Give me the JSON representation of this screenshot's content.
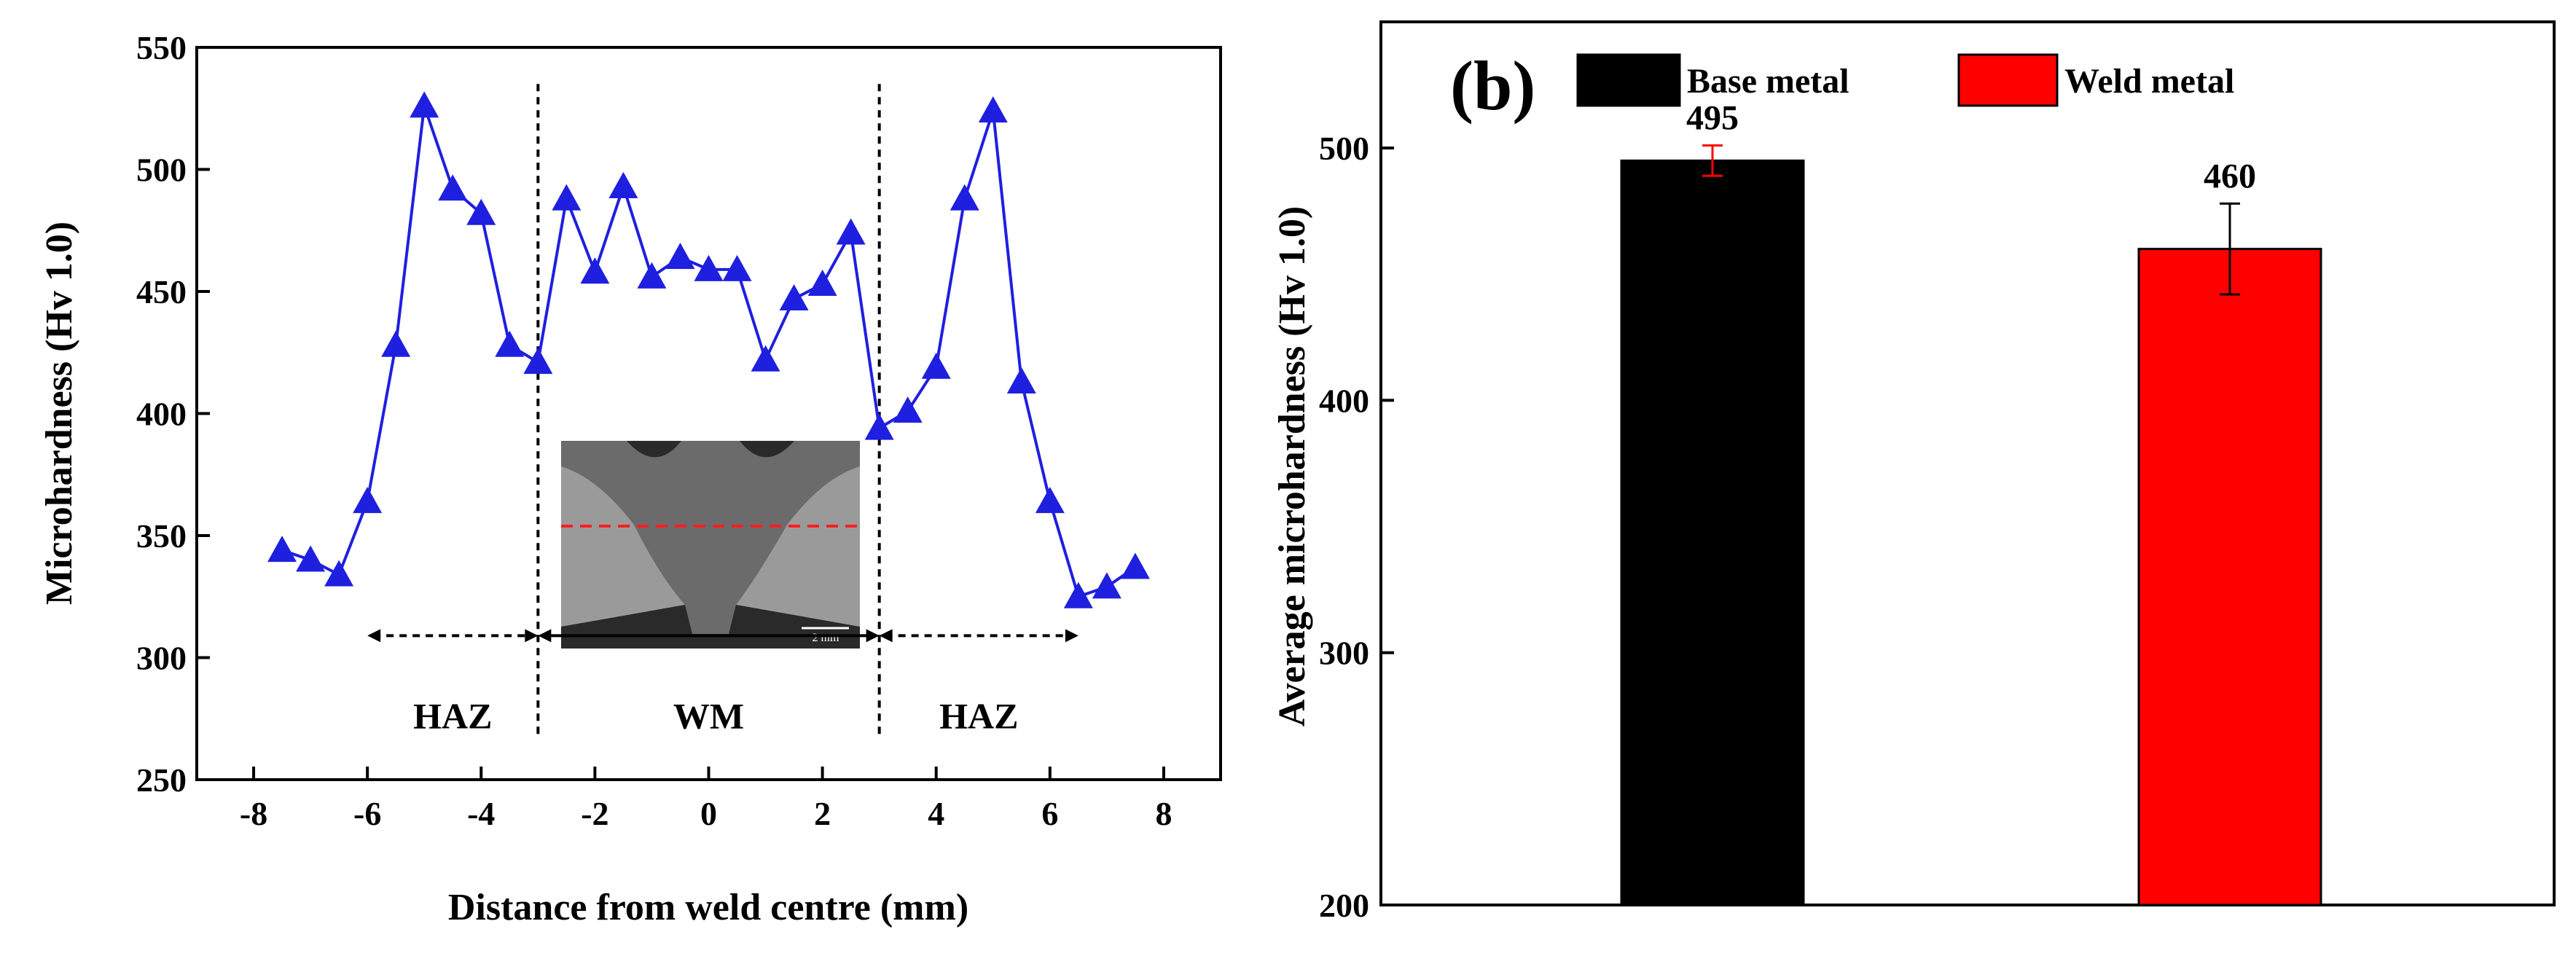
{
  "chart_data": [
    {
      "type": "line",
      "title": "",
      "xlabel": "Distance from weld centre (mm)",
      "ylabel": "Microhardness (Hv 1.0)",
      "xlim": [
        -9,
        9
      ],
      "ylim": [
        250,
        550
      ],
      "xticks": [
        -8,
        -6,
        -4,
        -2,
        0,
        2,
        4,
        6,
        8
      ],
      "yticks": [
        250,
        300,
        350,
        400,
        450,
        500,
        550
      ],
      "series": [
        {
          "name": "Microhardness",
          "color": "#1f1fe0",
          "marker": "triangle",
          "x": [
            -7.5,
            -7,
            -6.5,
            -6,
            -5.5,
            -5,
            -4.5,
            -4,
            -3.5,
            -3,
            -2.5,
            -2,
            -1.5,
            -1,
            -0.5,
            0,
            0.5,
            1,
            1.5,
            2,
            2.5,
            3,
            3.5,
            4,
            4.5,
            5,
            5.5,
            6,
            6.5,
            7,
            7.5
          ],
          "y": [
            344,
            340,
            334,
            364,
            428,
            526,
            492,
            482,
            428,
            421,
            488,
            458,
            493,
            456,
            464,
            459,
            459,
            422,
            447,
            453,
            474,
            394,
            401,
            419,
            488,
            524,
            413,
            364,
            325,
            329,
            337
          ]
        }
      ],
      "boundaries": [
        -3,
        3
      ],
      "regions": [
        {
          "label": "HAZ",
          "from": -6,
          "to": -3
        },
        {
          "label": "WM",
          "from": -3,
          "to": 3
        },
        {
          "label": "HAZ",
          "from": 3,
          "to": 6.5
        }
      ],
      "inset": {
        "description_scale": "2 mm"
      }
    },
    {
      "type": "bar",
      "panel_label": "(b)",
      "title": "",
      "xlabel": "",
      "ylabel": "Average microhardness (Hv 1.0)",
      "ylim": [
        200,
        550
      ],
      "yticks": [
        200,
        300,
        400,
        500
      ],
      "categories": [
        "Base metal",
        "Weld metal"
      ],
      "values": [
        495,
        460
      ],
      "errors": [
        6,
        18
      ],
      "value_labels": [
        "495",
        "460"
      ],
      "colors": [
        "#000000",
        "#ff0000"
      ],
      "error_colors": [
        "#ff0000",
        "#000000"
      ],
      "legend": [
        "Base metal",
        "Weld metal"
      ],
      "legend_position": "top"
    }
  ]
}
